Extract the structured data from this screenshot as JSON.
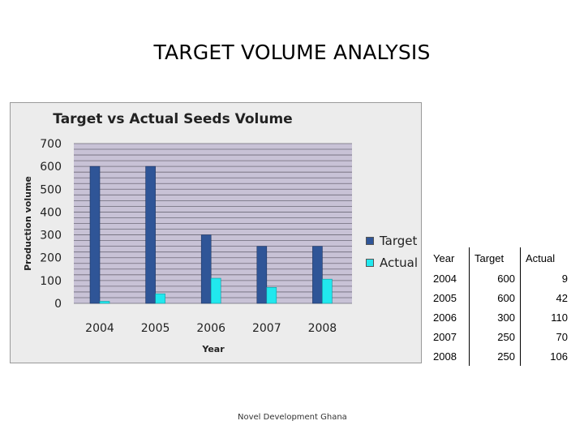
{
  "slide": {
    "title": "TARGET VOLUME ANALYSIS",
    "footer": "Novel Development Ghana"
  },
  "chart_data": {
    "type": "bar",
    "title": "Target   vs   Actual Seeds Volume",
    "xlabel": "Year",
    "ylabel": "Production volume",
    "categories": [
      "2004",
      "2005",
      "2006",
      "2007",
      "2008"
    ],
    "series": [
      {
        "name": "Target",
        "values": [
          600,
          600,
          300,
          250,
          250
        ],
        "color": "#2f5597"
      },
      {
        "name": "Actual",
        "values": [
          9,
          42,
          110,
          70,
          106
        ],
        "color": "#21e8ee"
      }
    ],
    "ylim": [
      0,
      700
    ],
    "yticks": [
      0,
      100,
      200,
      300,
      400,
      500,
      600,
      700
    ],
    "grid": true,
    "legend_position": "right",
    "plot_background": "#c8c2d6"
  },
  "table": {
    "headers": [
      "Year",
      "Target",
      "Actual"
    ],
    "rows": [
      [
        "2004",
        "600",
        "9"
      ],
      [
        "2005",
        "600",
        "42"
      ],
      [
        "2006",
        "300",
        "110"
      ],
      [
        "2007",
        "250",
        "70"
      ],
      [
        "2008",
        "250",
        "106"
      ]
    ]
  }
}
